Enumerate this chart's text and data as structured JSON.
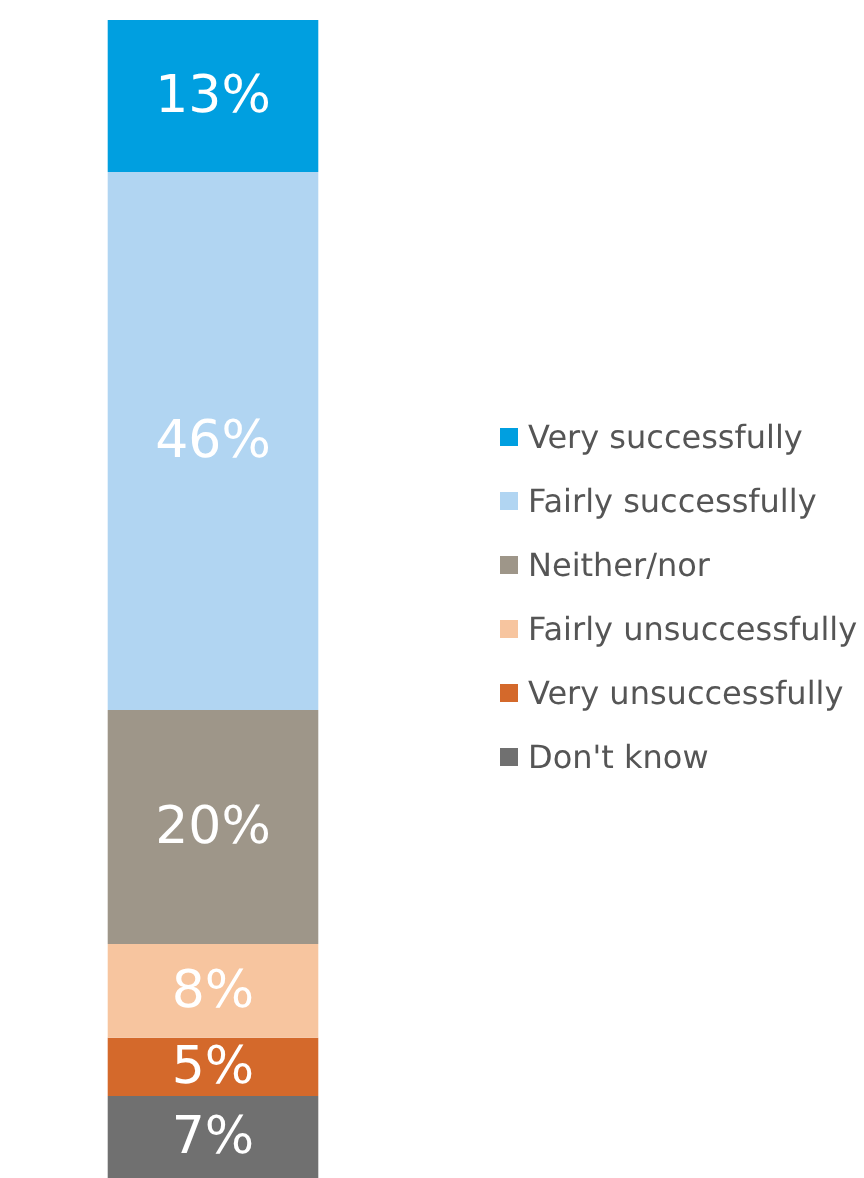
{
  "chart_data": {
    "type": "bar",
    "stacked": true,
    "categories": [
      null
    ],
    "legend": "right",
    "series": [
      {
        "name": "Don't know",
        "color": "#707070",
        "values": [
          7
        ],
        "value_labels": [
          "7%"
        ]
      },
      {
        "name": "Very unsuccessfully",
        "color": "#d4692b",
        "values": [
          5
        ],
        "value_labels": [
          "5%"
        ]
      },
      {
        "name": "Fairly unsuccessfully",
        "color": "#f7c59f",
        "values": [
          8
        ],
        "value_labels": [
          "8%"
        ]
      },
      {
        "name": "Neither/nor",
        "color": "#9e9689",
        "values": [
          20
        ],
        "value_labels": [
          "20%"
        ]
      },
      {
        "name": "Fairly successfully",
        "color": "#b1d5f2",
        "values": [
          46
        ],
        "value_labels": [
          "46%"
        ]
      },
      {
        "name": "Very successfully",
        "color": "#009fe0",
        "values": [
          13
        ],
        "value_labels": [
          "13%"
        ]
      }
    ]
  }
}
